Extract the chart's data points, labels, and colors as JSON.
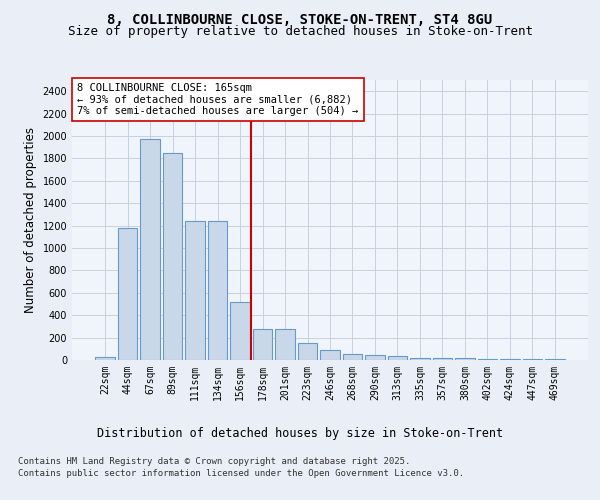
{
  "title": "8, COLLINBOURNE CLOSE, STOKE-ON-TRENT, ST4 8GU",
  "subtitle": "Size of property relative to detached houses in Stoke-on-Trent",
  "xlabel": "Distribution of detached houses by size in Stoke-on-Trent",
  "ylabel": "Number of detached properties",
  "categories": [
    "22sqm",
    "44sqm",
    "67sqm",
    "89sqm",
    "111sqm",
    "134sqm",
    "156sqm",
    "178sqm",
    "201sqm",
    "223sqm",
    "246sqm",
    "268sqm",
    "290sqm",
    "313sqm",
    "335sqm",
    "357sqm",
    "380sqm",
    "402sqm",
    "424sqm",
    "447sqm",
    "469sqm"
  ],
  "values": [
    30,
    1175,
    1975,
    1850,
    1240,
    1240,
    515,
    275,
    275,
    155,
    90,
    50,
    45,
    40,
    20,
    20,
    15,
    5,
    5,
    5,
    10
  ],
  "bar_color": "#c8d8e8",
  "bar_edge_color": "#6699cc",
  "vline_x_index": 6.5,
  "vline_color": "#cc0000",
  "annotation_box_text": "8 COLLINBOURNE CLOSE: 165sqm\n← 93% of detached houses are smaller (6,882)\n7% of semi-detached houses are larger (504) →",
  "ylim": [
    0,
    2500
  ],
  "yticks": [
    0,
    200,
    400,
    600,
    800,
    1000,
    1200,
    1400,
    1600,
    1800,
    2000,
    2200,
    2400
  ],
  "footer_line1": "Contains HM Land Registry data © Crown copyright and database right 2025.",
  "footer_line2": "Contains public sector information licensed under the Open Government Licence v3.0.",
  "bg_color": "#eaeff7",
  "plot_bg_color": "#f0f4fb",
  "grid_color": "#c8d0e0",
  "title_fontsize": 10,
  "subtitle_fontsize": 9,
  "axis_label_fontsize": 8.5,
  "tick_fontsize": 7,
  "annotation_fontsize": 7.5,
  "footer_fontsize": 6.5
}
